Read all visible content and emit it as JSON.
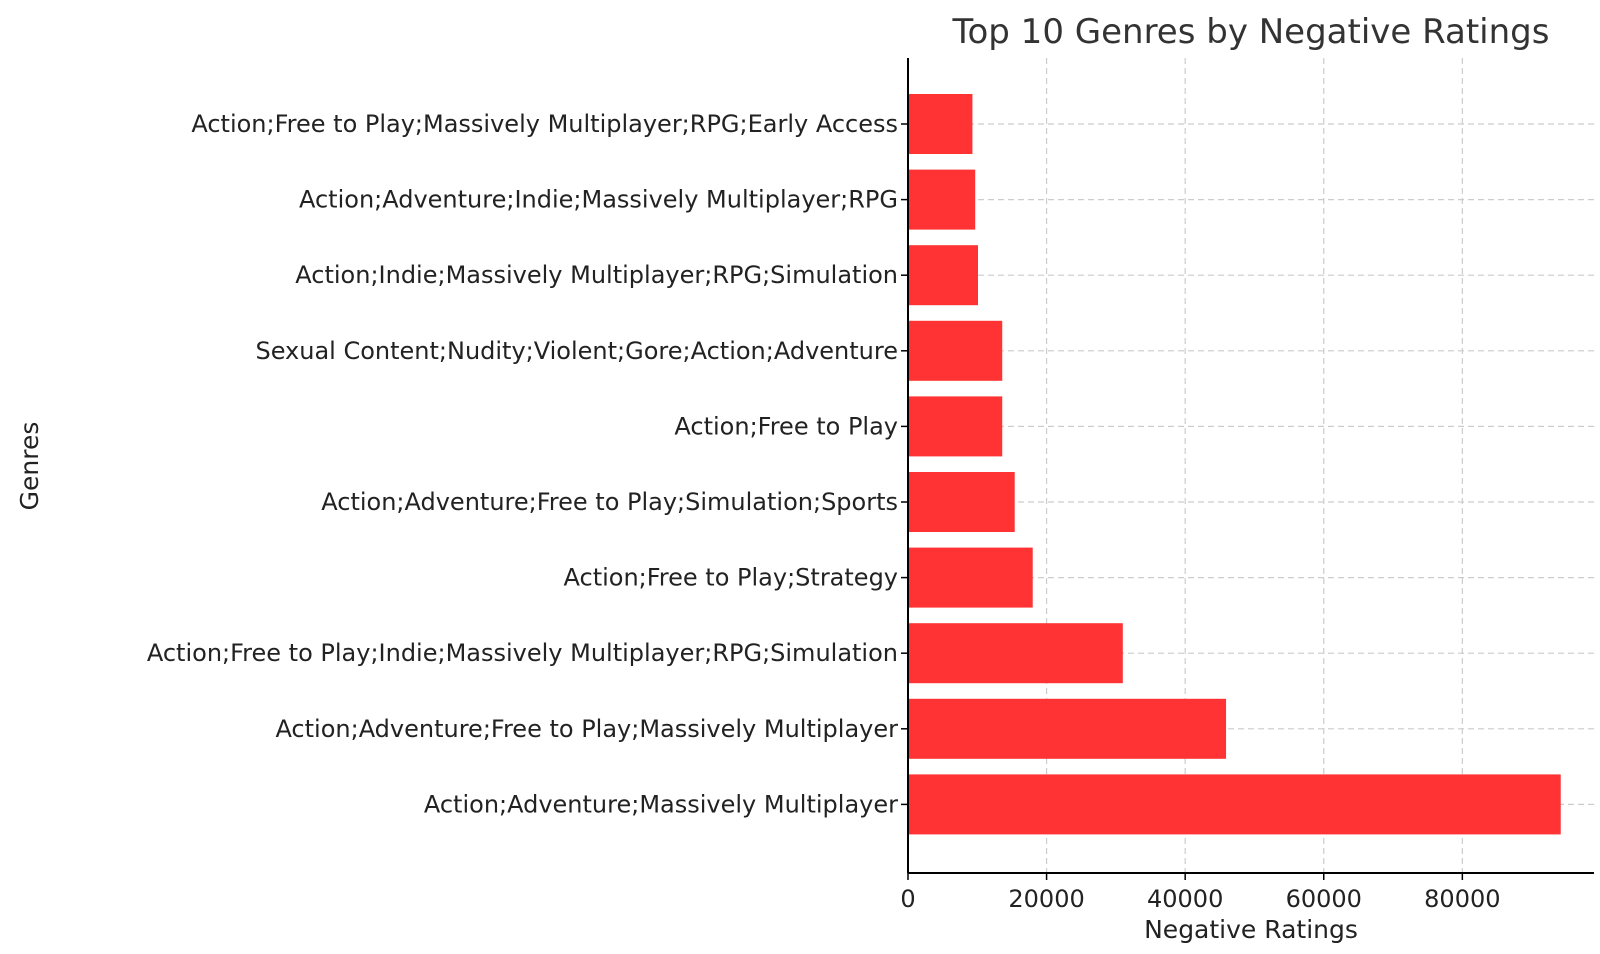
{
  "chart_data": {
    "type": "bar",
    "orientation": "horizontal",
    "title": "Top 10 Genres by Negative Ratings",
    "xlabel": "Negative Ratings",
    "ylabel": "Genres",
    "bar_color": "#ff3333",
    "xlim": [
      0,
      99000
    ],
    "xticks": [
      0,
      20000,
      40000,
      60000,
      80000
    ],
    "grid": true,
    "categories": [
      "Action;Free to Play;Massively Multiplayer;RPG;Early Access",
      "Action;Adventure;Indie;Massively Multiplayer;RPG",
      "Action;Indie;Massively Multiplayer;RPG;Simulation",
      "Sexual Content;Nudity;Violent;Gore;Action;Adventure",
      "Action;Free to Play",
      "Action;Adventure;Free to Play;Simulation;Sports",
      "Action;Free to Play;Strategy",
      "Action;Free to Play;Indie;Massively Multiplayer;RPG;Simulation",
      "Action;Adventure;Free to Play;Massively Multiplayer",
      "Action;Adventure;Massively Multiplayer"
    ],
    "values": [
      9300,
      9700,
      10100,
      13600,
      13600,
      15400,
      18000,
      31000,
      45900,
      94200
    ]
  }
}
